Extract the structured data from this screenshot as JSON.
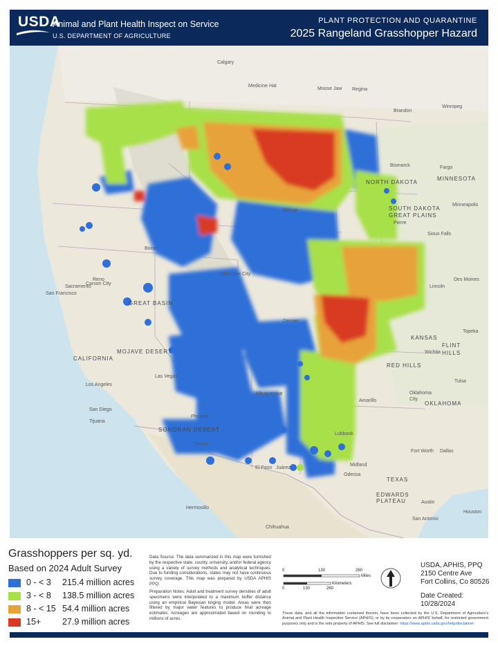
{
  "header": {
    "logo": "USDA",
    "agency": "Animal and Plant Health Inspect on Service",
    "department": "U.S. DEPARTMENT OF AGRICULTURE",
    "program": "PLANT PROTECTION AND QUARANTINE",
    "title": "2025 Rangeland Grasshopper Hazard"
  },
  "legend": {
    "title": "Grasshoppers per sq. yd.",
    "subtitle": "Based on 2024 Adult Survey",
    "classes": [
      {
        "range": "0 - < 3",
        "acres": "215.4 million acres",
        "color": "#2f6fd8"
      },
      {
        "range": "3 - < 8",
        "acres": "138.5 million acres",
        "color": "#a8e04a"
      },
      {
        "range": "8 - < 15",
        "acres": "54.4 million acres",
        "color": "#e8a23a"
      },
      {
        "range": "15+",
        "acres": "27.9 million acres",
        "color": "#d93a24"
      }
    ]
  },
  "notes": {
    "data_source": "Data Source: The data summarized in this map were furnished by the respective state, county, university, and/or federal agency using a variety of survey methods and analytical techniques. Due to funding considerations, states may not have continuous survey coverage. This map was prepared by USDA APHIS PPQ.",
    "preparation": "Preparation Notes: Adult and treatment survey densities of adult specimens were interpolated to a maximum buffer distance using an empirical Bayesian kriging model. Areas were then filtered by major water features to produce final acreage estimates. Acreages are approximated based on rounding to millions of acres."
  },
  "scale": {
    "miles_ticks": [
      "0",
      "130",
      "260"
    ],
    "miles_unit": "Miles",
    "km_ticks": [
      "0",
      "130",
      "260"
    ],
    "km_unit": "Kilometers"
  },
  "contact": {
    "org": "USDA, APHIS, PPQ",
    "address1": "2150 Centre Ave",
    "address2": "Fort Collins, Co 80526",
    "date_label": "Date Created:",
    "date": "10/28/2024"
  },
  "disclaimer": {
    "text": "These data, and all the information contained therein, have been collected by the U.S. Department of Agriculture's Animal and Plant Health Inspection Service (APHIS), or by its cooperators on APHIS' behalf, for restricted government purposes only and is the sole property of APHIS. See full disclaimer:",
    "url": "https://www.aphis.usda.gov/help/disclaimer"
  },
  "map_labels": {
    "cities": [
      "Calgary",
      "Medicine Hat",
      "Moose Jaw",
      "Regina",
      "Brandon",
      "Winnipeg",
      "Billings",
      "Bismarck",
      "Fargo",
      "Pierre",
      "Sioux Falls",
      "Lincoln",
      "Topeka",
      "Wichita",
      "Denver",
      "Salt Lake City",
      "Boise",
      "Reno",
      "Carson City",
      "Sacramento",
      "San Francisco",
      "Los Angeles",
      "San Diego",
      "Tijuana",
      "Las Vegas",
      "Phoenix",
      "Tucson",
      "Albuquerque",
      "Amarillo",
      "Lubbock",
      "El Paso",
      "Juárez",
      "Midland",
      "Odessa",
      "Oklahoma City",
      "Tulsa",
      "Fort Worth",
      "Dallas",
      "Austin",
      "San Antonio",
      "Houston",
      "Hermosillo",
      "Chihuahua",
      "Des Moines",
      "Minneapolis"
    ],
    "regions": [
      "GREAT PLAINS",
      "MINNESOTA",
      "NORTH DAKOTA",
      "SOUTH DAKOTA",
      "KANSAS",
      "OKLAHOMA",
      "TEXAS",
      "CALIFORNIA",
      "MOJAVE DESERT",
      "GREAT BASIN",
      "FLINT HILLS",
      "RED HILLS",
      "EDWARDS PLATEAU",
      "SONORAN DESERT"
    ]
  }
}
